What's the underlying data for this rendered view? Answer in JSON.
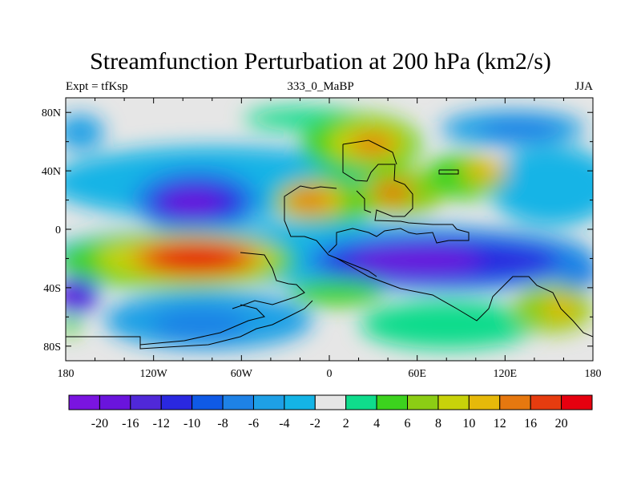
{
  "chart_data": {
    "type": "heatmap",
    "title": "Streamfunction Perturbation at 200 hPa (km2/s)",
    "left_string": "Expt = tfKsp",
    "center_string": "333_0_MaBP",
    "right_string": "JJA",
    "xlim": [
      -180,
      180
    ],
    "ylim": [
      -90,
      90
    ],
    "x_ticks": [
      {
        "value": -180,
        "label": "180"
      },
      {
        "value": -120,
        "label": "120W"
      },
      {
        "value": -60,
        "label": "60W"
      },
      {
        "value": 0,
        "label": "0"
      },
      {
        "value": 60,
        "label": "60E"
      },
      {
        "value": 120,
        "label": "120E"
      },
      {
        "value": 180,
        "label": "180"
      }
    ],
    "y_ticks": [
      {
        "value": 80,
        "label": "80N"
      },
      {
        "value": 40,
        "label": "40N"
      },
      {
        "value": 0,
        "label": "0"
      },
      {
        "value": -40,
        "label": "40S"
      },
      {
        "value": -80,
        "label": "80S"
      }
    ],
    "colorbar": {
      "colors": [
        "#7a14e0",
        "#6a14dc",
        "#5028d8",
        "#2a28e0",
        "#0f5ae6",
        "#1e82e6",
        "#1ea0e6",
        "#14b4e6",
        "#e6e6e6",
        "#0fdc8c",
        "#3cd21e",
        "#8ccd14",
        "#c8d20a",
        "#e6b90a",
        "#e6780f",
        "#e63c0f",
        "#e6000f"
      ],
      "levels": [
        "-20",
        "-16",
        "-12",
        "-10",
        "-8",
        "-6",
        "-4",
        "-2",
        "2",
        "4",
        "6",
        "8",
        "10",
        "12",
        "16",
        "20"
      ]
    },
    "field_features": [
      {
        "lon": -90,
        "lat": 18,
        "value": -12
      },
      {
        "lon": -75,
        "lat": -18,
        "value": 20
      },
      {
        "lon": 40,
        "lat": -22,
        "value": -18
      },
      {
        "lon": -155,
        "lat": -50,
        "value": -14
      },
      {
        "lon": -65,
        "lat": -62,
        "value": -8
      },
      {
        "lon": 45,
        "lat": 58,
        "value": 16
      },
      {
        "lon": -20,
        "lat": 20,
        "value": 16
      },
      {
        "lon": 40,
        "lat": 25,
        "value": 12
      },
      {
        "lon": 110,
        "lat": 40,
        "value": 10
      },
      {
        "lon": 150,
        "lat": -55,
        "value": 10
      },
      {
        "lon": 130,
        "lat": 65,
        "value": -6
      },
      {
        "lon": 175,
        "lat": -20,
        "value": -10
      }
    ]
  }
}
